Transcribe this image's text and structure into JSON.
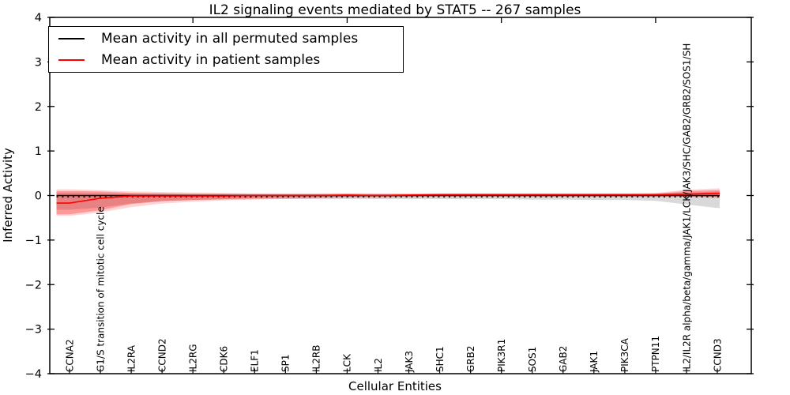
{
  "chart_data": {
    "type": "line",
    "title": "IL2 signaling events mediated by STAT5 -- 267 samples",
    "xlabel": "Cellular Entities",
    "ylabel": "Inferred Activity",
    "ylim": [
      -4,
      4
    ],
    "ytick_labels": [
      "4",
      "3",
      "2",
      "1",
      "0",
      "−1",
      "−2",
      "−3",
      "−4"
    ],
    "ytick_values": [
      4,
      3,
      2,
      1,
      0,
      -1,
      -2,
      -3,
      -4
    ],
    "grid": false,
    "legend_position": "upper left",
    "categories": [
      "CCNA2",
      "G1/S transition of mitotic cell cycle",
      "IL2RA",
      "CCND2",
      "IL2RG",
      "CDK6",
      "ELF1",
      "SP1",
      "IL2RB",
      "LCK",
      "IL2",
      "JAK3",
      "SHC1",
      "GRB2",
      "PIK3R1",
      "SOS1",
      "GAB2",
      "JAK1",
      "PIK3CA",
      "PTPN11",
      "IL2/IL2R alpha/beta/gamma/JAK1/LCK/JAK3/SHC/GAB2/GRB2/SOS1/SH",
      "CCND3"
    ],
    "series": [
      {
        "name": "Mean activity in all permuted samples",
        "color": "#000000",
        "style": "solid",
        "values": [
          0,
          0,
          0,
          0,
          0,
          0,
          0,
          0,
          0,
          0,
          0,
          0,
          0,
          0,
          0,
          0,
          0,
          0,
          0,
          0,
          0,
          0
        ]
      },
      {
        "name": "Mean activity in patient samples",
        "color": "#ff0000",
        "style": "solid",
        "values": [
          -0.17,
          -0.06,
          -0.01,
          -0.01,
          -0.01,
          -0.01,
          0,
          0,
          0,
          0.01,
          0,
          0.01,
          0.02,
          0.02,
          0.02,
          0.02,
          0.02,
          0.02,
          0.02,
          0.02,
          0.03,
          0.05
        ]
      }
    ],
    "zero_line": {
      "style": "dashed",
      "color": "#000000",
      "value": 0
    },
    "bands": [
      {
        "name": "permuted-samples-spread",
        "color": "#9a9a9a",
        "opacity": 0.38,
        "upper": [
          0.06,
          0.05,
          0.04,
          0.04,
          0.03,
          0.03,
          0.03,
          0.03,
          0.03,
          0.03,
          0.03,
          0.03,
          0.03,
          0.03,
          0.03,
          0.03,
          0.03,
          0.03,
          0.03,
          0.04,
          0.06,
          0.09
        ],
        "lower": [
          -0.32,
          -0.27,
          -0.18,
          -0.12,
          -0.1,
          -0.09,
          -0.08,
          -0.08,
          -0.08,
          -0.08,
          -0.08,
          -0.08,
          -0.08,
          -0.08,
          -0.08,
          -0.09,
          -0.09,
          -0.1,
          -0.1,
          -0.12,
          -0.2,
          -0.28
        ]
      },
      {
        "name": "patient-samples-spread-outer",
        "color": "#ff0000",
        "opacity": 0.17,
        "upper": [
          0.14,
          0.12,
          0.09,
          0.08,
          0.07,
          0.06,
          0.05,
          0.05,
          0.05,
          0.05,
          0.05,
          0.05,
          0.05,
          0.05,
          0.05,
          0.05,
          0.05,
          0.05,
          0.05,
          0.06,
          0.13,
          0.16
        ],
        "lower": [
          -0.46,
          -0.38,
          -0.26,
          -0.18,
          -0.14,
          -0.11,
          -0.09,
          -0.08,
          -0.06,
          -0.05,
          -0.05,
          -0.04,
          -0.03,
          -0.03,
          -0.03,
          -0.03,
          -0.03,
          -0.03,
          -0.03,
          -0.03,
          -0.03,
          -0.05
        ]
      },
      {
        "name": "patient-samples-spread-inner",
        "color": "#ff0000",
        "opacity": 0.28,
        "upper": [
          0.1,
          0.09,
          0.06,
          0.05,
          0.04,
          0.04,
          0.03,
          0.03,
          0.03,
          0.04,
          0.03,
          0.03,
          0.04,
          0.04,
          0.04,
          0.04,
          0.04,
          0.04,
          0.04,
          0.04,
          0.1,
          0.12
        ],
        "lower": [
          -0.42,
          -0.33,
          -0.19,
          -0.13,
          -0.1,
          -0.08,
          -0.06,
          -0.05,
          -0.04,
          -0.03,
          -0.03,
          -0.02,
          -0.01,
          -0.01,
          -0.01,
          -0.01,
          -0.01,
          -0.01,
          -0.01,
          -0.01,
          -0.02,
          -0.03
        ]
      }
    ],
    "top_tick_category_indices": [
      4,
      9,
      14,
      19
    ]
  }
}
